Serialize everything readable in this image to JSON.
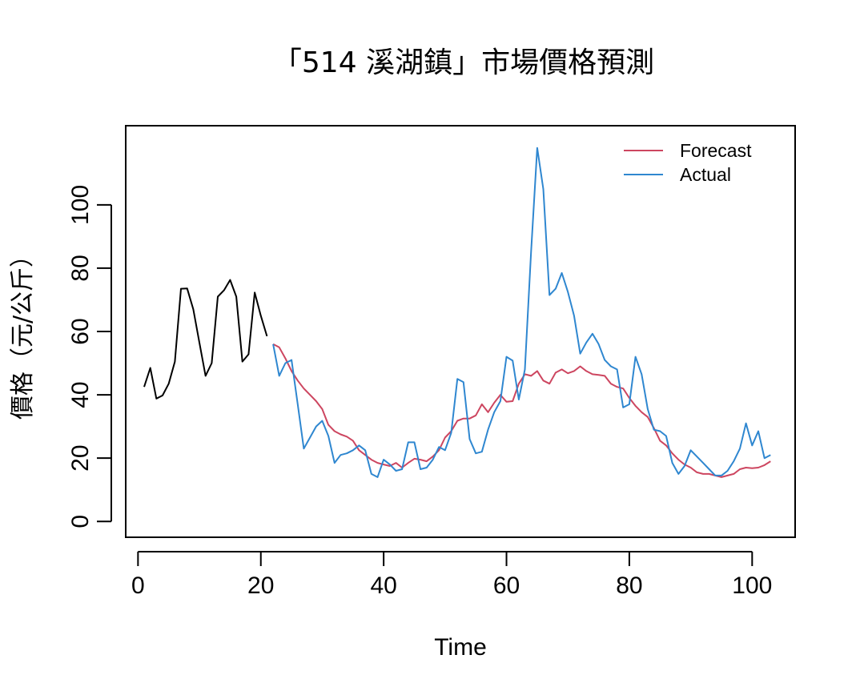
{
  "chart_data": {
    "type": "line",
    "title": "「514 溪湖鎮」市場價格預測",
    "xlabel": "Time",
    "ylabel": "價格（元/公斤）",
    "xlim": [
      -2,
      107
    ],
    "ylim": [
      -5,
      125
    ],
    "x_ticks": [
      0,
      20,
      40,
      60,
      80,
      100
    ],
    "y_ticks": [
      0,
      20,
      40,
      60,
      80,
      100
    ],
    "x_tick_labels": [
      "0",
      "20",
      "40",
      "60",
      "80",
      "100"
    ],
    "y_tick_labels": [
      "0",
      "20",
      "40",
      "60",
      "80",
      "100"
    ],
    "grid": false,
    "legend": {
      "position": "top-right",
      "entries": [
        "Forecast",
        "Actual"
      ]
    },
    "series": [
      {
        "color": "#000000",
        "x": [
          1,
          2,
          3,
          4,
          5,
          6,
          7,
          8,
          9,
          10,
          11,
          12,
          13,
          14,
          15,
          16,
          17,
          18,
          19,
          20,
          21
        ],
        "values": [
          42.5,
          48.5,
          38.8,
          39.8,
          43.5,
          50.5,
          73.5,
          73.6,
          67.0,
          56.5,
          46.0,
          50.0,
          71.0,
          73.0,
          76.3,
          71.0,
          50.5,
          52.8,
          72.3,
          65.0,
          58.5
        ]
      },
      {
        "name": "Forecast",
        "color": "#cd4660",
        "x": [
          22,
          23,
          24,
          25,
          26,
          27,
          28,
          29,
          30,
          31,
          32,
          33,
          34,
          35,
          36,
          37,
          38,
          39,
          40,
          41,
          42,
          43,
          44,
          45,
          46,
          47,
          48,
          49,
          50,
          51,
          52,
          53,
          54,
          55,
          56,
          57,
          58,
          59,
          60,
          61,
          62,
          63,
          64,
          65,
          66,
          67,
          68,
          69,
          70,
          71,
          72,
          73,
          74,
          75,
          76,
          77,
          78,
          79,
          80,
          81,
          82,
          83,
          84,
          85,
          86,
          87,
          88,
          89,
          90,
          91,
          92,
          93,
          94,
          95,
          96,
          97,
          98,
          99,
          100,
          101,
          102,
          103
        ],
        "values": [
          56.0,
          55.0,
          51.5,
          47.5,
          44.5,
          42.0,
          40.0,
          38.0,
          35.5,
          30.5,
          28.5,
          27.5,
          26.8,
          25.5,
          22.5,
          21.0,
          19.5,
          18.5,
          18.0,
          17.5,
          18.5,
          17.0,
          18.5,
          19.8,
          19.5,
          19.0,
          20.5,
          22.5,
          26.5,
          28.5,
          31.8,
          32.5,
          32.5,
          33.5,
          37.0,
          34.5,
          37.5,
          40.0,
          37.8,
          38.0,
          43.5,
          46.5,
          46.0,
          47.5,
          44.5,
          43.5,
          47.0,
          48.0,
          46.8,
          47.5,
          49.0,
          47.5,
          46.5,
          46.3,
          46.0,
          43.5,
          42.5,
          42.0,
          39.0,
          36.5,
          34.5,
          33.0,
          29.5,
          25.5,
          24.0,
          21.5,
          19.5,
          18.0,
          17.0,
          15.5,
          15.0,
          15.0,
          14.5,
          14.0,
          14.5,
          15.0,
          16.5,
          17.0,
          16.8,
          17.0,
          17.8,
          19.0
        ]
      },
      {
        "name": "Actual",
        "color": "#2f87d0",
        "x": [
          22,
          23,
          24,
          25,
          26,
          27,
          28,
          29,
          30,
          31,
          32,
          33,
          34,
          35,
          36,
          37,
          38,
          39,
          40,
          41,
          42,
          43,
          44,
          45,
          46,
          47,
          48,
          49,
          50,
          51,
          52,
          53,
          54,
          55,
          56,
          57,
          58,
          59,
          60,
          61,
          62,
          63,
          64,
          65,
          66,
          67,
          68,
          69,
          70,
          71,
          72,
          73,
          74,
          75,
          76,
          77,
          78,
          79,
          80,
          81,
          82,
          83,
          84,
          85,
          86,
          87,
          88,
          89,
          90,
          91,
          92,
          93,
          94,
          95,
          96,
          97,
          98,
          99,
          100,
          101,
          102,
          103
        ],
        "values": [
          56.0,
          46.0,
          50.0,
          51.0,
          37.0,
          23.0,
          26.5,
          30.0,
          31.8,
          27.0,
          18.5,
          21.0,
          21.5,
          22.5,
          24.0,
          22.5,
          15.0,
          14.0,
          19.5,
          18.0,
          16.0,
          16.5,
          25.0,
          25.0,
          16.5,
          17.0,
          19.5,
          23.5,
          22.5,
          28.0,
          45.0,
          44.0,
          26.0,
          21.5,
          22.0,
          29.0,
          34.5,
          38.0,
          52.0,
          50.8,
          38.5,
          48.0,
          85.0,
          118.0,
          105.0,
          71.5,
          73.5,
          78.5,
          72.5,
          65.0,
          53.0,
          56.5,
          59.3,
          56.0,
          51.0,
          49.0,
          48.0,
          36.0,
          37.0,
          52.0,
          46.5,
          35.5,
          29.0,
          28.5,
          27.0,
          18.5,
          15.0,
          17.5,
          22.5,
          20.5,
          18.5,
          16.5,
          14.5,
          14.5,
          16.0,
          19.0,
          23.0,
          31.0,
          24.0,
          28.5,
          20.0,
          21.0
        ]
      }
    ]
  }
}
